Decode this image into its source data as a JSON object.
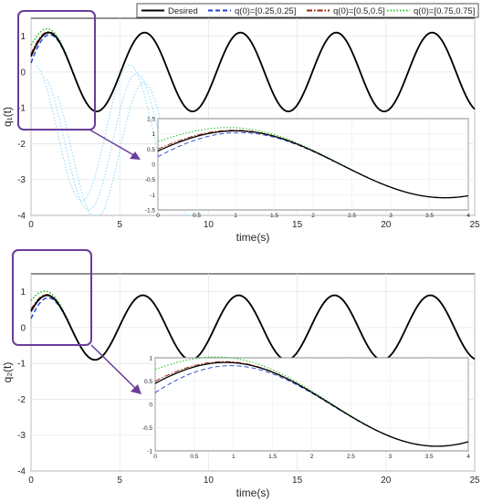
{
  "legend": {
    "entries": [
      {
        "label": "Desired",
        "color": "#000000",
        "dash": "solid"
      },
      {
        "label": "q(0)=[0.25,0.25]",
        "color": "#1f3fd6",
        "dash": "dashed"
      },
      {
        "label": "q(0)=[0.5,0.5]",
        "color": "#a0200a",
        "dash": "dashdot"
      },
      {
        "label": "q(0)=[0.75,0.75]",
        "color": "#2ec52e",
        "dash": "dotted"
      }
    ]
  },
  "colors": {
    "desired": "#000000",
    "q025": "#1f3fd6",
    "q05": "#a0200a",
    "q075": "#2ec52e",
    "artifact": "#66ccff",
    "highlight": "#6a3d9a"
  },
  "chart_data": [
    {
      "type": "line",
      "ylabel": "q₁(t)",
      "xlabel": "time(s)",
      "xlim": [
        0,
        25
      ],
      "ylim": [
        -4,
        1.5
      ],
      "xticks": [
        0,
        5,
        10,
        15,
        20,
        25
      ],
      "yticks": [
        1,
        0,
        -1,
        -2,
        -3,
        -4
      ],
      "grid": true,
      "signal": {
        "amplitude": 1.1,
        "period": 5.4,
        "phase_peak_time": 1.0
      },
      "initial_values": {
        "Desired": 0.8,
        "q(0)=[0.25,0.25]": 0.25,
        "q(0)=[0.5,0.5]": 0.5,
        "q(0)=[0.75,0.75]": 0.75
      },
      "inset": {
        "xlim": [
          0,
          4
        ],
        "ylim": [
          -1.5,
          1.5
        ],
        "xticks": [
          0,
          0.5,
          1,
          1.5,
          2,
          2.5,
          3,
          3.5,
          4
        ],
        "yticks": [
          1.5,
          1,
          0.5,
          0,
          -0.5,
          -1,
          -1.5
        ]
      }
    },
    {
      "type": "line",
      "ylabel": "q₂(t)",
      "xlabel": "time(s)",
      "xlim": [
        0,
        25
      ],
      "ylim": [
        -4,
        1.5
      ],
      "xticks": [
        0,
        5,
        10,
        15,
        20,
        25
      ],
      "yticks": [
        1,
        0,
        -1,
        -2,
        -3,
        -4
      ],
      "grid": true,
      "signal": {
        "amplitude": 0.9,
        "period": 5.4,
        "phase_peak_time": 0.9
      },
      "initial_values": {
        "Desired": 0.6,
        "q(0)=[0.25,0.25]": 0.25,
        "q(0)=[0.5,0.5]": 0.5,
        "q(0)=[0.75,0.75]": 0.75
      },
      "inset": {
        "xlim": [
          0,
          4
        ],
        "ylim": [
          -1,
          1
        ],
        "xticks": [
          0,
          0.5,
          1,
          1.5,
          2,
          2.5,
          3,
          3.5,
          4
        ],
        "yticks": [
          1,
          0.5,
          0,
          -0.5,
          -1
        ]
      }
    }
  ]
}
